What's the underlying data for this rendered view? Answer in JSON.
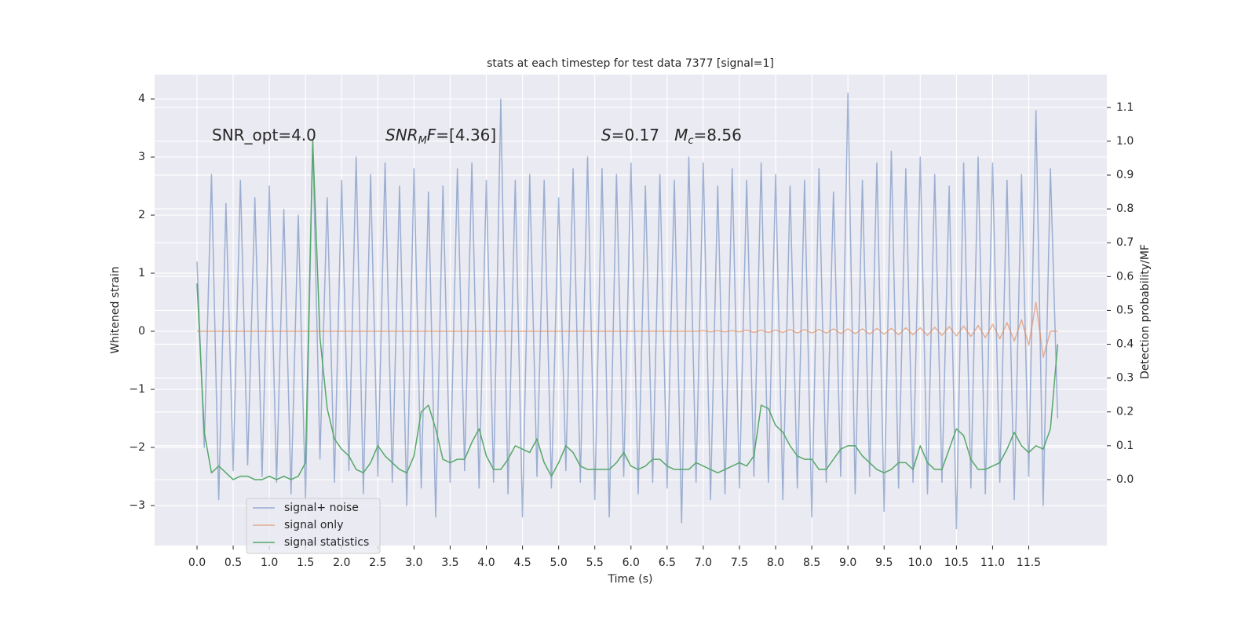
{
  "chart_data": {
    "type": "line",
    "title": "stats at each timestep for test data 7377 [signal=1]",
    "xlabel": "Time (s)",
    "ylabel": "Whitened strain",
    "y2label": "Detection probability/MF",
    "grid": true,
    "legend_loc": "lower left",
    "annotations": [
      [
        {
          "t": "SNR_opt=4.0",
          "style": "normal"
        }
      ],
      [
        {
          "t": "SNR",
          "style": "italic"
        },
        {
          "t": "M",
          "style": "sub"
        },
        {
          "t": "F",
          "style": "italic"
        },
        {
          "t": "=[4.36]",
          "style": "normal"
        }
      ],
      [
        {
          "t": "S",
          "style": "italic"
        },
        {
          "t": "=0.17   ",
          "style": "normal"
        },
        {
          "t": "M",
          "style": "italic"
        },
        {
          "t": "c",
          "style": "sub"
        },
        {
          "t": "=8.56",
          "style": "normal"
        }
      ]
    ],
    "x": [
      0.0,
      0.1,
      0.2,
      0.3,
      0.4,
      0.5,
      0.6,
      0.7,
      0.8,
      0.9,
      1.0,
      1.1,
      1.2,
      1.3,
      1.4,
      1.5,
      1.6,
      1.7,
      1.8,
      1.9,
      2.0,
      2.1,
      2.2,
      2.3,
      2.4,
      2.5,
      2.6,
      2.7,
      2.8,
      2.9,
      3.0,
      3.1,
      3.2,
      3.3,
      3.4,
      3.5,
      3.6,
      3.7,
      3.8,
      3.9,
      4.0,
      4.1,
      4.2,
      4.3,
      4.4,
      4.5,
      4.6,
      4.7,
      4.8,
      4.9,
      5.0,
      5.1,
      5.2,
      5.3,
      5.4,
      5.5,
      5.6,
      5.7,
      5.8,
      5.9,
      6.0,
      6.1,
      6.2,
      6.3,
      6.4,
      6.5,
      6.6,
      6.7,
      6.8,
      6.9,
      7.0,
      7.1,
      7.2,
      7.3,
      7.4,
      7.5,
      7.6,
      7.7,
      7.8,
      7.9,
      8.0,
      8.1,
      8.2,
      8.3,
      8.4,
      8.5,
      8.6,
      8.7,
      8.8,
      8.9,
      9.0,
      9.1,
      9.2,
      9.3,
      9.4,
      9.5,
      9.6,
      9.7,
      9.8,
      9.9,
      10.0,
      10.1,
      10.2,
      10.3,
      10.4,
      10.5,
      10.6,
      10.7,
      10.8,
      10.9,
      11.0,
      11.1,
      11.2,
      11.3,
      11.4,
      11.5,
      11.6,
      11.7,
      11.8,
      11.9
    ],
    "series": [
      {
        "name": "signal+ noise",
        "color": "#4c72b0",
        "opacity": 0.5,
        "axis": "y",
        "values": [
          1.2,
          -2.0,
          2.7,
          -2.9,
          2.2,
          -2.4,
          2.6,
          -2.3,
          2.3,
          -2.5,
          2.5,
          -2.6,
          2.1,
          -2.8,
          2.0,
          -2.9,
          3.3,
          -2.2,
          2.3,
          -2.6,
          2.6,
          -2.4,
          3.0,
          -2.8,
          2.7,
          -2.5,
          2.9,
          -2.6,
          2.5,
          -3.0,
          2.8,
          -2.7,
          2.4,
          -3.2,
          2.5,
          -2.6,
          2.8,
          -2.4,
          2.9,
          -2.7,
          2.6,
          -2.6,
          4.0,
          -2.8,
          2.6,
          -3.2,
          2.7,
          -2.5,
          2.6,
          -2.7,
          2.3,
          -2.4,
          2.8,
          -2.6,
          3.0,
          -2.9,
          2.8,
          -3.2,
          2.7,
          -2.5,
          2.9,
          -2.8,
          2.5,
          -2.6,
          2.7,
          -2.7,
          2.6,
          -3.3,
          3.0,
          -2.6,
          2.9,
          -2.9,
          2.5,
          -2.8,
          2.8,
          -2.7,
          2.6,
          -2.5,
          2.9,
          -2.6,
          2.7,
          -2.9,
          2.5,
          -2.7,
          2.6,
          -3.2,
          2.8,
          -2.6,
          2.4,
          -2.5,
          4.1,
          -2.8,
          2.6,
          -2.5,
          2.9,
          -3.1,
          3.1,
          -2.7,
          2.8,
          -2.6,
          3.0,
          -2.8,
          2.7,
          -2.6,
          2.5,
          -3.4,
          2.9,
          -2.7,
          3.0,
          -2.8,
          2.9,
          -2.6,
          2.6,
          -2.9,
          2.7,
          -2.5,
          3.8,
          -3.0,
          2.8,
          -1.5
        ]
      },
      {
        "name": "signal only",
        "color": "#dd8452",
        "opacity": 0.6,
        "axis": "y",
        "values": [
          0,
          0,
          0,
          0,
          0,
          0,
          0,
          0,
          0,
          0,
          0,
          0,
          0,
          0,
          0,
          0,
          0,
          0,
          0,
          0,
          0,
          0,
          0,
          0,
          0,
          0,
          0,
          0,
          0,
          0,
          0,
          0,
          0,
          0,
          0,
          0,
          0,
          0,
          0,
          0,
          0,
          0,
          0,
          0,
          0,
          0,
          0,
          0,
          0,
          0,
          0,
          0,
          0,
          0,
          0,
          0,
          0,
          0,
          0,
          0,
          0,
          0,
          0,
          0,
          0,
          0,
          0,
          0,
          0,
          0,
          0.01,
          -0.01,
          0.01,
          -0.01,
          0.01,
          -0.01,
          0.02,
          -0.02,
          0.02,
          -0.02,
          0.02,
          -0.02,
          0.03,
          -0.03,
          0.03,
          -0.03,
          0.03,
          -0.03,
          0.04,
          -0.04,
          0.04,
          -0.04,
          0.04,
          -0.05,
          0.05,
          -0.05,
          0.05,
          -0.06,
          0.06,
          -0.06,
          0.06,
          -0.07,
          0.07,
          -0.07,
          0.08,
          -0.08,
          0.09,
          -0.09,
          0.1,
          -0.11,
          0.12,
          -0.13,
          0.15,
          -0.17,
          0.2,
          -0.24,
          0.5,
          -0.45,
          0,
          0
        ]
      },
      {
        "name": "signal statistics",
        "color": "#55a868",
        "opacity": 1,
        "axis": "y2",
        "values": [
          0.58,
          0.14,
          0.02,
          0.04,
          0.02,
          0.0,
          0.01,
          0.01,
          0.0,
          0.0,
          0.01,
          0.0,
          0.01,
          0.0,
          0.01,
          0.05,
          1.0,
          0.42,
          0.21,
          0.12,
          0.09,
          0.07,
          0.03,
          0.02,
          0.05,
          0.1,
          0.07,
          0.05,
          0.03,
          0.02,
          0.07,
          0.2,
          0.22,
          0.15,
          0.06,
          0.05,
          0.06,
          0.06,
          0.11,
          0.15,
          0.07,
          0.03,
          0.03,
          0.06,
          0.1,
          0.09,
          0.08,
          0.12,
          0.05,
          0.01,
          0.05,
          0.1,
          0.08,
          0.04,
          0.03,
          0.03,
          0.03,
          0.03,
          0.05,
          0.08,
          0.04,
          0.03,
          0.04,
          0.06,
          0.06,
          0.04,
          0.03,
          0.03,
          0.03,
          0.05,
          0.04,
          0.03,
          0.02,
          0.03,
          0.04,
          0.05,
          0.04,
          0.07,
          0.22,
          0.21,
          0.16,
          0.14,
          0.1,
          0.07,
          0.06,
          0.06,
          0.03,
          0.03,
          0.06,
          0.09,
          0.1,
          0.1,
          0.07,
          0.05,
          0.03,
          0.02,
          0.03,
          0.05,
          0.05,
          0.03,
          0.1,
          0.05,
          0.03,
          0.03,
          0.09,
          0.15,
          0.13,
          0.06,
          0.03,
          0.03,
          0.04,
          0.05,
          0.09,
          0.14,
          0.1,
          0.08,
          0.1,
          0.09,
          0.15,
          0.4
        ]
      }
    ],
    "xlim": [
      -0.586,
      12.58
    ],
    "ylim": [
      -3.69,
      4.42
    ],
    "y2lim": [
      -0.195,
      1.197
    ],
    "xticks": [
      {
        "value": 0,
        "label": "0.0"
      },
      0.5,
      {
        "value": 1,
        "label": "1.0"
      },
      1.5,
      {
        "value": 2,
        "label": "2.0"
      },
      2.5,
      {
        "value": 3,
        "label": "3.0"
      },
      3.5,
      {
        "value": 4,
        "label": "4.0"
      },
      4.5,
      {
        "value": 5,
        "label": "5.0"
      },
      5.5,
      {
        "value": 6,
        "label": "6.0"
      },
      6.5,
      {
        "value": 7,
        "label": "7.0"
      },
      7.5,
      {
        "value": 8,
        "label": "8.0"
      },
      8.5,
      {
        "value": 9,
        "label": "9.0"
      },
      9.5,
      {
        "value": 10,
        "label": "10.0"
      },
      10.5,
      {
        "value": 11,
        "label": "11.0"
      },
      11.5
    ],
    "yticks": [
      {
        "value": -3,
        "label": "−3"
      },
      {
        "value": -2,
        "label": "−2"
      },
      {
        "value": -1,
        "label": "−1"
      },
      0,
      1,
      2,
      3,
      4
    ],
    "y2ticks": [
      {
        "value": 0,
        "label": "0.0"
      },
      0.1,
      0.2,
      0.3,
      0.4,
      0.5,
      0.6,
      0.7,
      0.8,
      0.9,
      {
        "value": 1,
        "label": "1.0"
      },
      1.1
    ]
  }
}
